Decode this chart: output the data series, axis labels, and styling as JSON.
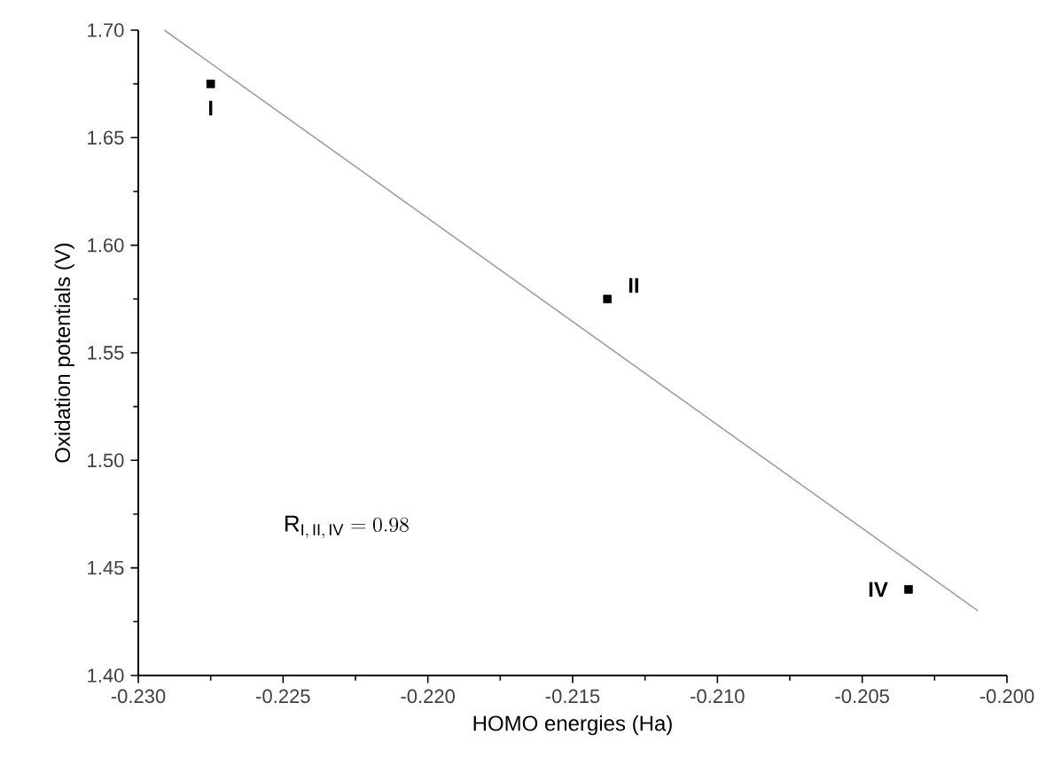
{
  "chart_data": {
    "type": "scatter",
    "xlabel": "HOMO energies (Ha)",
    "ylabel": "Oxidation potentials (V)",
    "series": [
      {
        "color": "#000000",
        "marker": "square",
        "x": [
          -0.2275,
          -0.2138,
          -0.2034
        ],
        "values": [
          1.675,
          1.575,
          1.44
        ]
      },
      {
        "type": "line",
        "color": "#a0a0a0",
        "line_style": "solid",
        "x": [
          -0.2291,
          -0.201
        ],
        "values": [
          1.7,
          1.43
        ]
      }
    ],
    "xlim": [
      -0.23,
      -0.2
    ],
    "ylim": [
      1.4,
      1.7
    ],
    "xticks": [
      {
        "value": -0.23,
        "label": "-0.230"
      },
      {
        "value": -0.225,
        "label": "-0.225"
      },
      {
        "value": -0.22,
        "label": "-0.220"
      },
      {
        "value": -0.215,
        "label": "-0.215"
      },
      {
        "value": -0.21,
        "label": "-0.210"
      },
      {
        "value": -0.205,
        "label": "-0.205"
      },
      {
        "value": -0.2,
        "label": "-0.200"
      }
    ],
    "yticks": [
      {
        "value": 1.4,
        "label": "1.40"
      },
      {
        "value": 1.45,
        "label": "1.45"
      },
      {
        "value": 1.5,
        "label": "1.50"
      },
      {
        "value": 1.55,
        "label": "1.55"
      },
      {
        "value": 1.6,
        "label": "1.60"
      },
      {
        "value": 1.65,
        "label": "1.65"
      },
      {
        "value": 1.7,
        "label": "1.70"
      }
    ],
    "grid": false,
    "annotations": [
      {
        "text": "I",
        "x": -0.2275,
        "y": 1.675
      },
      {
        "text": "II",
        "x": -0.2138,
        "y": 1.575
      },
      {
        "text": "IV",
        "x": -0.2034,
        "y": 1.44
      },
      "\\mathrm{R}_{\\mathrm{I,\\,II,\\,IV}} = 0.98"
    ]
  }
}
